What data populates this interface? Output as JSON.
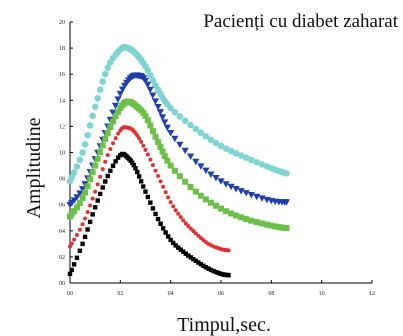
{
  "chart_data": {
    "type": "scatter",
    "title": "Pacienți cu diabet zaharat",
    "xlabel": "Timpul,sec.",
    "ylabel": "Amplitudine",
    "xlim": [
      0,
      12
    ],
    "ylim": [
      0,
      20
    ],
    "x_ticks": [
      "00",
      "02",
      "04",
      "06",
      "08",
      "10",
      "12"
    ],
    "y_ticks": [
      "00",
      "02",
      "04",
      "06",
      "08",
      "10",
      "12",
      "14",
      "16",
      "18",
      "20"
    ],
    "grid": false,
    "legend": "none",
    "series": [
      {
        "color": "#7fd3d0",
        "marker": "circle",
        "x": [
          0.0,
          0.5,
          1.0,
          1.5,
          2.0,
          2.3,
          2.6,
          3.0,
          3.5,
          4.0,
          5.0,
          6.0,
          7.0,
          8.0,
          8.6
        ],
        "y": [
          7.8,
          10.0,
          13.5,
          16.5,
          17.9,
          18.0,
          17.6,
          16.6,
          14.8,
          13.4,
          11.8,
          10.5,
          9.6,
          8.8,
          8.4
        ]
      },
      {
        "color": "#1f3fae",
        "marker": "triangle-down",
        "x": [
          0.0,
          0.5,
          1.0,
          1.5,
          2.0,
          2.4,
          2.7,
          3.0,
          3.5,
          4.0,
          5.0,
          6.0,
          7.0,
          8.0,
          8.6
        ],
        "y": [
          6.0,
          7.2,
          9.5,
          12.0,
          14.5,
          15.7,
          15.9,
          15.5,
          13.5,
          11.5,
          9.3,
          7.8,
          6.9,
          6.3,
          6.2
        ]
      },
      {
        "color": "#6cc04a",
        "marker": "square",
        "x": [
          0.0,
          0.5,
          1.0,
          1.5,
          2.0,
          2.3,
          2.6,
          3.0,
          3.5,
          4.0,
          5.0,
          6.0,
          7.0,
          8.0,
          8.6
        ],
        "y": [
          5.1,
          6.5,
          9.0,
          11.5,
          13.4,
          13.9,
          13.6,
          12.8,
          10.8,
          9.0,
          7.0,
          5.7,
          4.9,
          4.4,
          4.2
        ]
      },
      {
        "color": "#e03030",
        "marker": "circle",
        "x": [
          0.0,
          0.5,
          1.0,
          1.5,
          2.0,
          2.3,
          2.6,
          3.0,
          3.5,
          4.0,
          4.5,
          5.0,
          5.5,
          6.0,
          6.3
        ],
        "y": [
          2.8,
          4.5,
          7.0,
          9.8,
          11.7,
          11.9,
          11.5,
          10.2,
          8.2,
          6.2,
          4.8,
          3.8,
          3.0,
          2.6,
          2.5
        ]
      },
      {
        "color": "#000000",
        "marker": "square",
        "x": [
          0.0,
          0.5,
          1.0,
          1.5,
          2.0,
          2.3,
          2.6,
          3.0,
          3.5,
          4.0,
          4.5,
          5.0,
          5.5,
          6.0,
          6.3
        ],
        "y": [
          0.7,
          3.0,
          5.8,
          8.2,
          9.8,
          9.6,
          8.8,
          7.0,
          4.9,
          3.3,
          2.4,
          1.7,
          1.1,
          0.7,
          0.6
        ]
      }
    ]
  }
}
